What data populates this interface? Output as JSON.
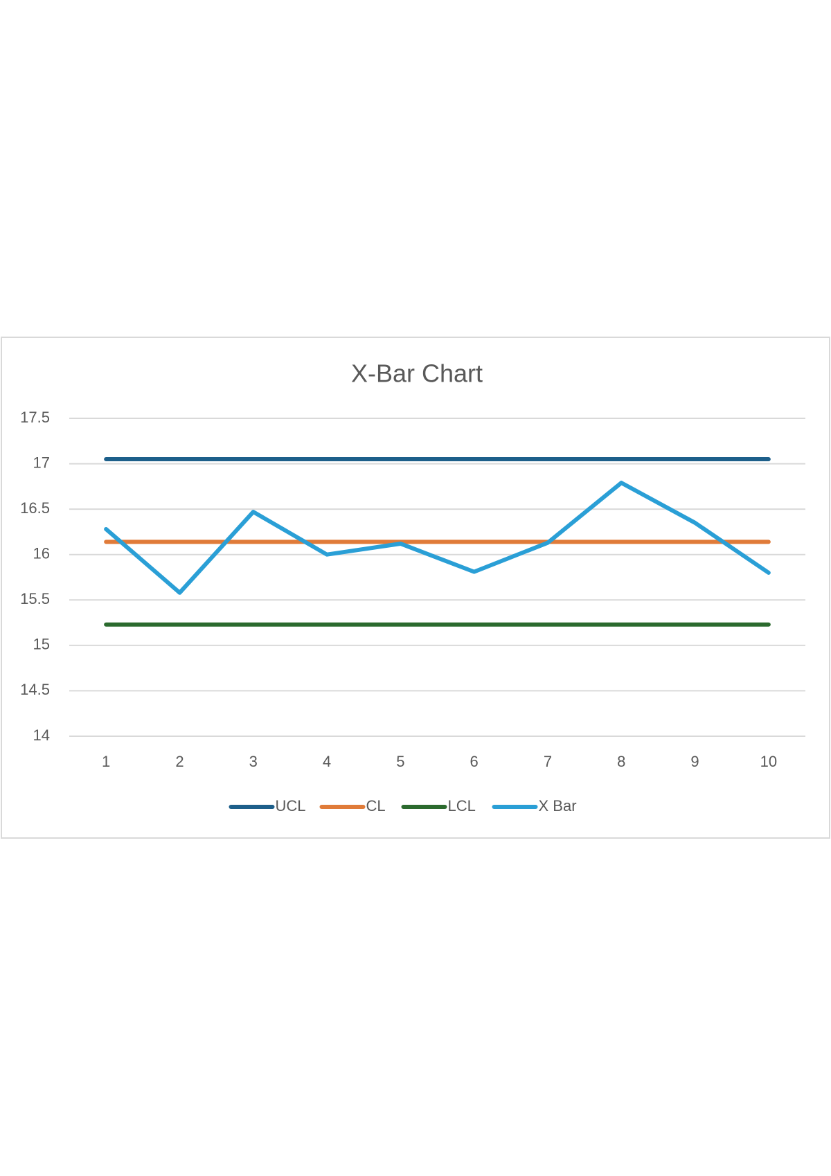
{
  "chart_data": {
    "type": "line",
    "title": "X-Bar Chart",
    "categories": [
      "1",
      "2",
      "3",
      "4",
      "5",
      "6",
      "7",
      "8",
      "9",
      "10"
    ],
    "series": [
      {
        "name": "UCL",
        "color": "#1d5f8a",
        "values": [
          17.05,
          17.05,
          17.05,
          17.05,
          17.05,
          17.05,
          17.05,
          17.05,
          17.05,
          17.05
        ]
      },
      {
        "name": "CL",
        "color": "#e07b39",
        "values": [
          16.14,
          16.14,
          16.14,
          16.14,
          16.14,
          16.14,
          16.14,
          16.14,
          16.14,
          16.14
        ]
      },
      {
        "name": "LCL",
        "color": "#2b6a2e",
        "values": [
          15.23,
          15.23,
          15.23,
          15.23,
          15.23,
          15.23,
          15.23,
          15.23,
          15.23,
          15.23
        ]
      },
      {
        "name": "X Bar",
        "color": "#2a9fd6",
        "values": [
          16.28,
          15.58,
          16.47,
          16.0,
          16.12,
          15.81,
          16.13,
          16.79,
          16.35,
          15.8
        ]
      }
    ],
    "ylim": [
      14,
      17.5
    ],
    "yticks": [
      14,
      14.5,
      15,
      15.5,
      16,
      16.5,
      17,
      17.5
    ],
    "grid": true,
    "legend": "bottom"
  }
}
